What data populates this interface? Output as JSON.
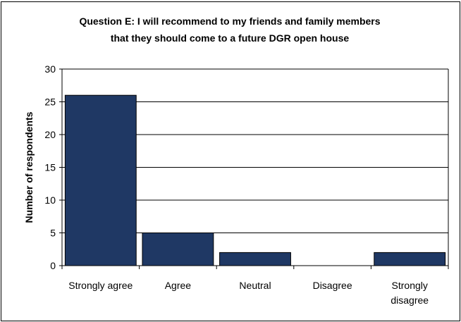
{
  "chart_data": {
    "type": "bar",
    "title_lines": [
      "Question E: I will recommend to my friends and family members",
      "that they should come to a future DGR open house"
    ],
    "xlabel": "",
    "ylabel": "Number of respondents",
    "categories": [
      [
        "Strongly agree"
      ],
      [
        "Agree"
      ],
      [
        "Neutral"
      ],
      [
        "Disagree"
      ],
      [
        "Strongly",
        "disagree"
      ]
    ],
    "values": [
      26,
      5,
      2,
      0,
      2
    ],
    "ylim": [
      0,
      30
    ],
    "yticks": [
      "0",
      "5",
      "10",
      "15",
      "20",
      "25",
      "30"
    ],
    "grid": true,
    "legend": "none",
    "bar_color": "#1f3864",
    "bar_edge": "#000000"
  }
}
